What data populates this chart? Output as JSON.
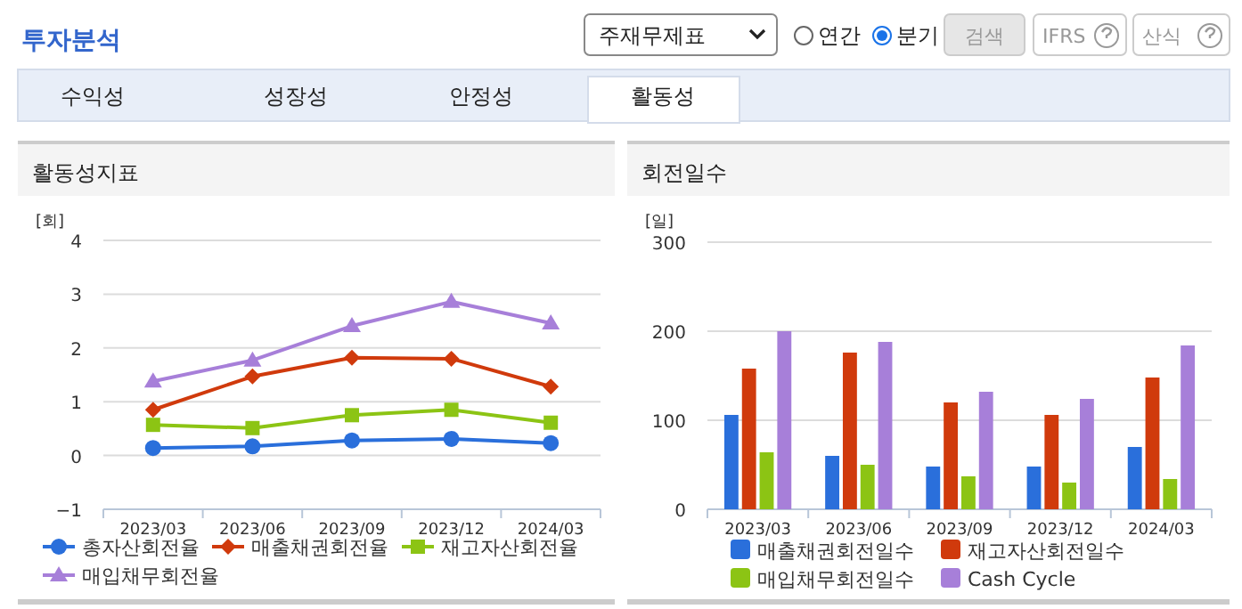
{
  "chart_data": [
    {
      "type": "other",
      "title": "투자분석",
      "annotations": [
        "주재무제표",
        "연간",
        "분기",
        "검색",
        "IFRS",
        "산식",
        "수익성",
        "성장성",
        "안정성",
        "활동성"
      ]
    },
    {
      "type": "line",
      "title": "활동성지표",
      "ylabel": "[회]",
      "categories": [
        "2023/03",
        "2023/06",
        "2023/09",
        "2023/12",
        "2024/03"
      ],
      "ylim": [
        -1,
        4
      ],
      "yticks": [
        -1,
        0,
        1,
        2,
        3,
        4
      ],
      "grid": "y",
      "legend": "bottom",
      "series": [
        {
          "name": "총자산회전율",
          "color": "#2a6fdb",
          "marker": "circle",
          "values": [
            0.14,
            0.17,
            0.28,
            0.31,
            0.23
          ]
        },
        {
          "name": "매출채권회전율",
          "color": "#d03a0c",
          "marker": "diamond",
          "values": [
            0.85,
            1.47,
            1.82,
            1.8,
            1.28
          ]
        },
        {
          "name": "재고자산회전율",
          "color": "#8cc414",
          "marker": "square",
          "values": [
            0.57,
            0.51,
            0.75,
            0.85,
            0.61
          ]
        },
        {
          "name": "매입채무회전율",
          "color": "#a77fd9",
          "marker": "triangle",
          "values": [
            1.38,
            1.77,
            2.41,
            2.86,
            2.46
          ]
        }
      ]
    },
    {
      "type": "bar",
      "title": "회전일수",
      "ylabel": "[일]",
      "categories": [
        "2023/03",
        "2023/06",
        "2023/09",
        "2023/12",
        "2024/03"
      ],
      "ylim": [
        0,
        300
      ],
      "yticks": [
        0,
        100,
        200,
        300
      ],
      "grid": "y",
      "legend": "bottom",
      "series": [
        {
          "name": "매출채권회전일수",
          "color": "#2a6fdb",
          "values": [
            106,
            60,
            48,
            48,
            70
          ]
        },
        {
          "name": "재고자산회전일수",
          "color": "#d03a0c",
          "values": [
            158,
            176,
            120,
            106,
            148
          ]
        },
        {
          "name": "매입채무회전일수",
          "color": "#8cc414",
          "values": [
            64,
            50,
            37,
            30,
            34
          ]
        },
        {
          "name": "Cash Cycle",
          "color": "#a77fd9",
          "values": [
            200,
            188,
            132,
            124,
            184
          ]
        }
      ]
    }
  ]
}
